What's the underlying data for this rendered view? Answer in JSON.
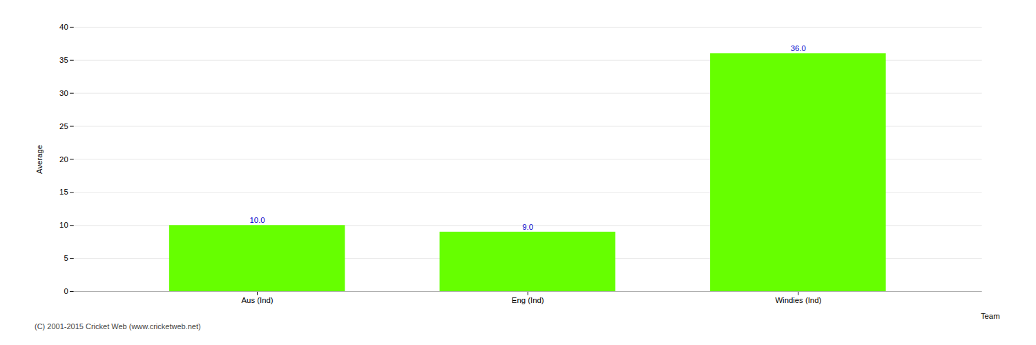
{
  "chart_data": {
    "type": "bar",
    "categories": [
      "Aus (Ind)",
      "Eng (Ind)",
      "Windies (Ind)"
    ],
    "values": [
      10.0,
      9.0,
      36.0
    ],
    "value_labels": [
      "10.0",
      "9.0",
      "36.0"
    ],
    "data_labels": true,
    "color": "#66ff00",
    "xlabel": "Team",
    "ylabel": "Average",
    "ylim": [
      0,
      40
    ],
    "yticks": [
      0,
      5,
      10,
      15,
      20,
      25,
      30,
      35,
      40
    ],
    "grid": true,
    "annotations": [
      "(C) 2001-2015 Cricket Web (www.cricketweb.net)"
    ]
  }
}
